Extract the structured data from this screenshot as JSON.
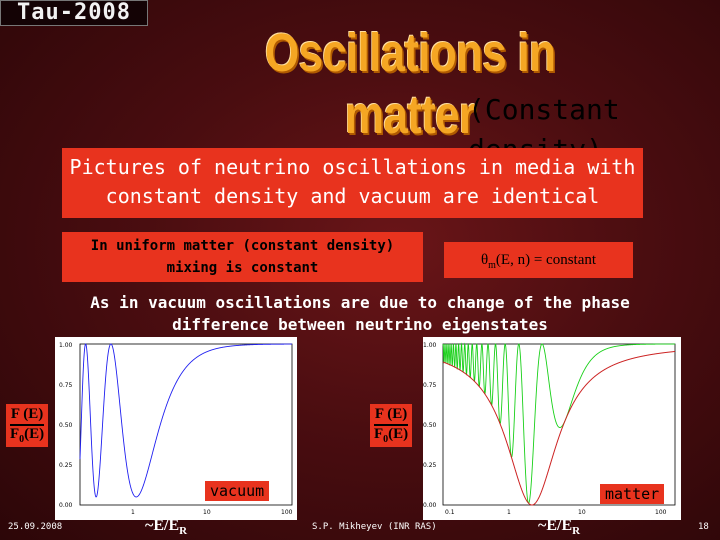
{
  "header": {
    "logo": "Tau-2008",
    "title": "Oscillations in matter",
    "subtitle": "(Constant density)"
  },
  "banner": {
    "line1": "Pictures of neutrino oscillations in media with",
    "line2": "constant density and vacuum are identical"
  },
  "note_left": {
    "line1": "In uniform matter (constant density)",
    "line2": "mixing is constant"
  },
  "note_right": {
    "symbol": "θ",
    "sub": "m",
    "text": "(E, n) = constant"
  },
  "statement": {
    "line1": "As in vacuum oscillations are due to change of the phase",
    "line2": "difference between neutrino eigenstates"
  },
  "plots": {
    "left": {
      "label": "vacuum",
      "yticks": [
        "1.00",
        "0.75",
        "0.50",
        "0.25",
        "0.00"
      ],
      "xticks": [
        "1",
        "10",
        "100"
      ],
      "line_color": "#1f1ff0",
      "ylabel_num": "F (E)",
      "ylabel_den_main": "F",
      "ylabel_den_sub": "0",
      "ylabel_den_tail": "(E)"
    },
    "right": {
      "label": "matter",
      "yticks": [
        "1.00",
        "0.75",
        "0.50",
        "0.25",
        "0.00"
      ],
      "xticks": [
        "0.1",
        "1",
        "10",
        "100"
      ],
      "line_color": "#18d018",
      "envelope_color": "#cc2222",
      "ylabel_num": "F (E)",
      "ylabel_den_main": "F",
      "ylabel_den_sub": "0",
      "ylabel_den_tail": "(E)"
    }
  },
  "footer": {
    "date": "25.09.2008",
    "author": "S.P. Mikheyev (INR RAS)",
    "page": "18",
    "xlabel_prefix": "~E/E",
    "xlabel_sub": "R"
  },
  "colors": {
    "accent_red": "#e8331e",
    "title_orange": "#f5a623",
    "background": "#4a0d10"
  }
}
